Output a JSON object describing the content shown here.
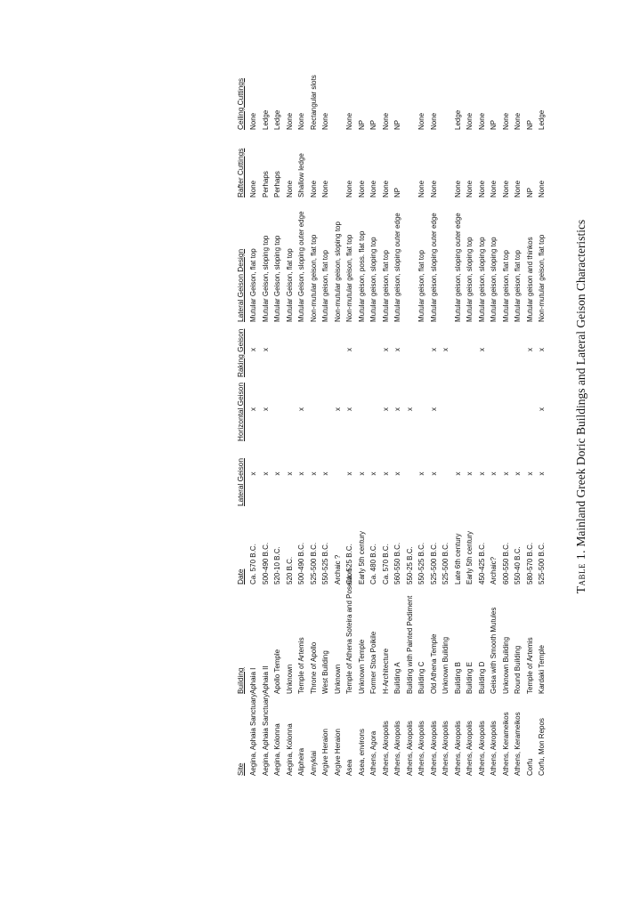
{
  "table": {
    "headers": [
      "Site",
      "Building",
      "Date",
      "Lateral Geison",
      "Horizontal Geison",
      "Raking Geison",
      "Lateral Geison Design",
      "Rafter Cuttings",
      "Ceiling Cuttings"
    ],
    "mark": "x",
    "rows": [
      [
        "Aegina, Aphaia Sanctuary",
        "Aphaia I",
        "Ca. 570 B.C.",
        true,
        true,
        true,
        "Mutular Geison, flat top",
        "None",
        "None"
      ],
      [
        "Aegina, Aphaia Sanctuary",
        "Aphaia II",
        "500-490 B.C.",
        true,
        true,
        true,
        "Mutular Geison, sloping top",
        "Perhaps",
        "Ledge"
      ],
      [
        "Aegina, Kolonna",
        "Apollo Temple",
        "520-10 B.C.",
        true,
        false,
        false,
        "Mutular Geison, sloping top",
        "Perhaps",
        "Ledge"
      ],
      [
        "Aegina, Kolonna",
        "Unknown",
        "520 B.C.",
        true,
        false,
        false,
        "Mutular Geison, flat top",
        "None",
        "None"
      ],
      [
        "Alipheira",
        "Temple of Artemis",
        "500-490 B.C.",
        true,
        true,
        false,
        "Mutular Geison, sloping outer edge",
        "Shallow ledge",
        "None"
      ],
      [
        "Amyklai",
        "Throne of Apollo",
        "525-500 B.C.",
        true,
        false,
        false,
        "Non-mutular geison, flat top",
        "None",
        "Rectangular slots"
      ],
      [
        "Argive Heraion",
        "West Building",
        "550-525 B.C.",
        true,
        false,
        false,
        "Mutular geison, flat top",
        "None",
        "None"
      ],
      [
        "Argive Heraion",
        "Unknown",
        "Archaic ?",
        false,
        true,
        false,
        "Non-mutular geison, sloping top",
        "",
        ""
      ],
      [
        "Asea",
        "Temple of Athena Soteira and Poseidon",
        "Ca. 525 B.C.",
        true,
        true,
        true,
        "Non-mutular geison, flat top",
        "None",
        "None"
      ],
      [
        "Asea, environs",
        "Unknown Temple",
        "Early 5th century",
        true,
        false,
        false,
        "Mutular geison, poss. flat top",
        "None",
        "NP"
      ],
      [
        "Athens, Agora",
        "Former Stoa Poikile",
        "Ca. 480 B.C.",
        true,
        false,
        false,
        "Mutular geison, sloping top",
        "None",
        "NP"
      ],
      [
        "Athens, Akropolis",
        "H-Architecture",
        "Ca. 570 B.C.",
        true,
        true,
        true,
        "Mutular geison, flat top",
        "None",
        "None"
      ],
      [
        "Athens, Akropolis",
        "Building A",
        "560-550 B.C.",
        true,
        true,
        true,
        "Mutular geison, sloping outer edge",
        "NP",
        "NP"
      ],
      [
        "Athens, Akropolis",
        "Building with Painted Pediment",
        "550-25 B.C.",
        false,
        true,
        false,
        "",
        "",
        ""
      ],
      [
        "Athens, Akropolis",
        "Building C",
        "550-525 B.C.",
        true,
        false,
        false,
        "Mutular geison, flat top",
        "None",
        "None"
      ],
      [
        "Athens, Akropolis",
        "Old Athena Temple",
        "525-500 B.C.",
        true,
        true,
        true,
        "Mutular geison, sloping outer edge",
        "None",
        "None"
      ],
      [
        "Athens, Akropolis",
        "Unknown Building",
        "525-500 B.C.",
        false,
        false,
        true,
        "",
        "",
        ""
      ],
      [
        "Athens, Akropolis",
        "Building B",
        "Late 6th century",
        true,
        false,
        false,
        "Mutular geison, sloping outer edge",
        "None",
        "Ledge"
      ],
      [
        "Athens, Akropolis",
        "Building E",
        "Early 5th century",
        true,
        false,
        false,
        "Mutular geison, sloping top",
        "None",
        "None"
      ],
      [
        "Athens, Akropolis",
        "Building D",
        "450-425 B.C.",
        true,
        false,
        true,
        "Mutular geison, sloping top",
        "None",
        "None"
      ],
      [
        "Athens, Akropolis",
        "Geisa with Smooth Mutules",
        "Archaic?",
        true,
        false,
        false,
        "Mutular geison, sloping top",
        "None",
        "NP"
      ],
      [
        "Athens, Kerameikos",
        "Unknown Building",
        "600-550 B.C.",
        true,
        false,
        false,
        "Mutular geison, flat top",
        "None",
        "None"
      ],
      [
        "Athens, Kerameikos",
        "Round Building",
        "550-40 B.C.",
        true,
        false,
        false,
        "Mutular geison, flat top",
        "None",
        "None"
      ],
      [
        "Corfu",
        "Temple of Artemis",
        "580-570 B.C.",
        true,
        false,
        true,
        "Mutular geison and thinkos",
        "NP",
        "NP"
      ],
      [
        "Corfu, Mon Repos",
        "Kardaki Temple",
        "525-500 B.C.",
        true,
        true,
        true,
        "Non-mutular geison, flat top",
        "None",
        "Ledge"
      ]
    ]
  },
  "caption": {
    "label": "Table 1.",
    "text": " Mainland Greek Doric Buildings and Lateral Geison Characteristics"
  }
}
